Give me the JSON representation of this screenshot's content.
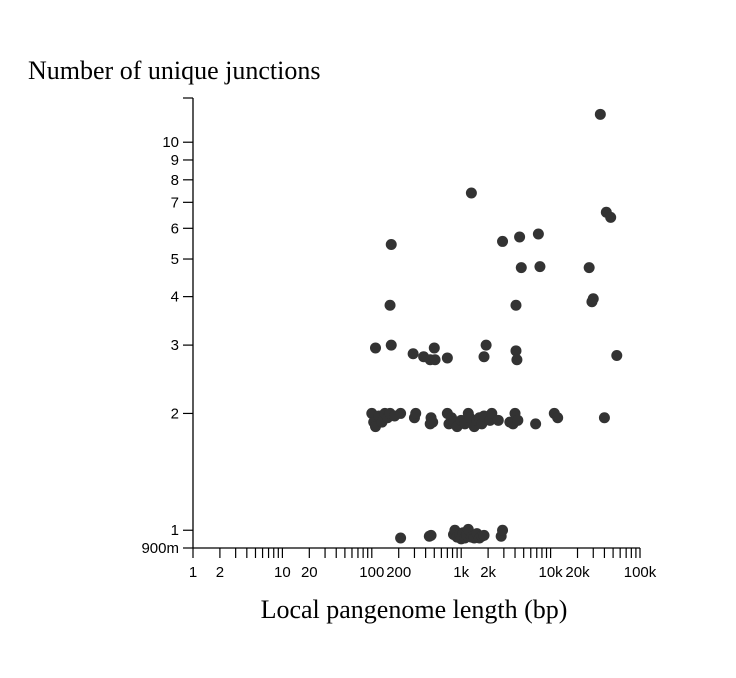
{
  "chart_data": {
    "type": "scatter",
    "title": "",
    "ylabel": "Number of unique junctions",
    "xlabel": "Local pangenome length (bp)",
    "x_scale": "log",
    "y_scale": "log",
    "xlim": [
      1,
      100000
    ],
    "ylim": [
      0.9,
      13
    ],
    "x_tick_labels": [
      {
        "value": 1,
        "label": "1"
      },
      {
        "value": 2,
        "label": "2"
      },
      {
        "value": 10,
        "label": "10"
      },
      {
        "value": 20,
        "label": "20"
      },
      {
        "value": 100,
        "label": "100"
      },
      {
        "value": 200,
        "label": "200"
      },
      {
        "value": 1000,
        "label": "1k"
      },
      {
        "value": 2000,
        "label": "2k"
      },
      {
        "value": 10000,
        "label": "10k"
      },
      {
        "value": 20000,
        "label": "20k"
      },
      {
        "value": 100000,
        "label": "100k"
      }
    ],
    "y_tick_labels": [
      {
        "value": 0.9,
        "label": "900m"
      },
      {
        "value": 1,
        "label": "1"
      },
      {
        "value": 2,
        "label": "2"
      },
      {
        "value": 3,
        "label": "3"
      },
      {
        "value": 4,
        "label": "4"
      },
      {
        "value": 5,
        "label": "5"
      },
      {
        "value": 6,
        "label": "6"
      },
      {
        "value": 7,
        "label": "7"
      },
      {
        "value": 8,
        "label": "8"
      },
      {
        "value": 9,
        "label": "9"
      },
      {
        "value": 10,
        "label": "10"
      }
    ],
    "grid": false,
    "marker_color": "#333333",
    "points": [
      [
        36000,
        11.8
      ],
      [
        1300,
        7.4
      ],
      [
        42000,
        6.6
      ],
      [
        47000,
        6.4
      ],
      [
        165,
        5.45
      ],
      [
        2900,
        5.55
      ],
      [
        4500,
        5.7
      ],
      [
        7300,
        5.8
      ],
      [
        4700,
        4.75
      ],
      [
        7600,
        4.78
      ],
      [
        27000,
        4.75
      ],
      [
        160,
        3.8
      ],
      [
        4100,
        3.8
      ],
      [
        29000,
        3.88
      ],
      [
        30000,
        3.95
      ],
      [
        110,
        2.95
      ],
      [
        165,
        3.0
      ],
      [
        290,
        2.85
      ],
      [
        380,
        2.8
      ],
      [
        450,
        2.75
      ],
      [
        500,
        2.95
      ],
      [
        510,
        2.75
      ],
      [
        700,
        2.78
      ],
      [
        1900,
        3.0
      ],
      [
        1800,
        2.8
      ],
      [
        4100,
        2.9
      ],
      [
        4200,
        2.75
      ],
      [
        55000,
        2.82
      ],
      [
        100,
        2.0
      ],
      [
        105,
        1.9
      ],
      [
        110,
        1.85
      ],
      [
        120,
        1.97
      ],
      [
        130,
        1.9
      ],
      [
        140,
        2.0
      ],
      [
        150,
        1.95
      ],
      [
        160,
        2.0
      ],
      [
        180,
        1.97
      ],
      [
        210,
        2.0
      ],
      [
        300,
        1.95
      ],
      [
        310,
        2.0
      ],
      [
        450,
        1.88
      ],
      [
        460,
        1.95
      ],
      [
        480,
        1.9
      ],
      [
        700,
        2.0
      ],
      [
        730,
        1.88
      ],
      [
        780,
        1.95
      ],
      [
        820,
        1.9
      ],
      [
        900,
        1.85
      ],
      [
        1000,
        1.92
      ],
      [
        1100,
        1.88
      ],
      [
        1200,
        2.0
      ],
      [
        1250,
        1.95
      ],
      [
        1400,
        1.85
      ],
      [
        1500,
        1.92
      ],
      [
        1600,
        1.95
      ],
      [
        1700,
        1.88
      ],
      [
        1800,
        1.97
      ],
      [
        2100,
        1.92
      ],
      [
        2200,
        2.0
      ],
      [
        2600,
        1.92
      ],
      [
        3500,
        1.9
      ],
      [
        3800,
        1.88
      ],
      [
        4000,
        2.0
      ],
      [
        4300,
        1.92
      ],
      [
        6800,
        1.88
      ],
      [
        11000,
        2.0
      ],
      [
        12000,
        1.95
      ],
      [
        40000,
        1.95
      ],
      [
        210,
        0.955
      ],
      [
        440,
        0.965
      ],
      [
        460,
        0.97
      ],
      [
        820,
        0.975
      ],
      [
        850,
        1.0
      ],
      [
        900,
        0.96
      ],
      [
        960,
        0.975
      ],
      [
        1000,
        0.95
      ],
      [
        1050,
        0.985
      ],
      [
        1100,
        0.955
      ],
      [
        1150,
        0.97
      ],
      [
        1200,
        1.005
      ],
      [
        1300,
        0.96
      ],
      [
        1400,
        0.955
      ],
      [
        1500,
        0.98
      ],
      [
        1600,
        0.955
      ],
      [
        1700,
        0.965
      ],
      [
        1800,
        0.97
      ],
      [
        2800,
        0.965
      ],
      [
        2900,
        1.0
      ]
    ]
  }
}
